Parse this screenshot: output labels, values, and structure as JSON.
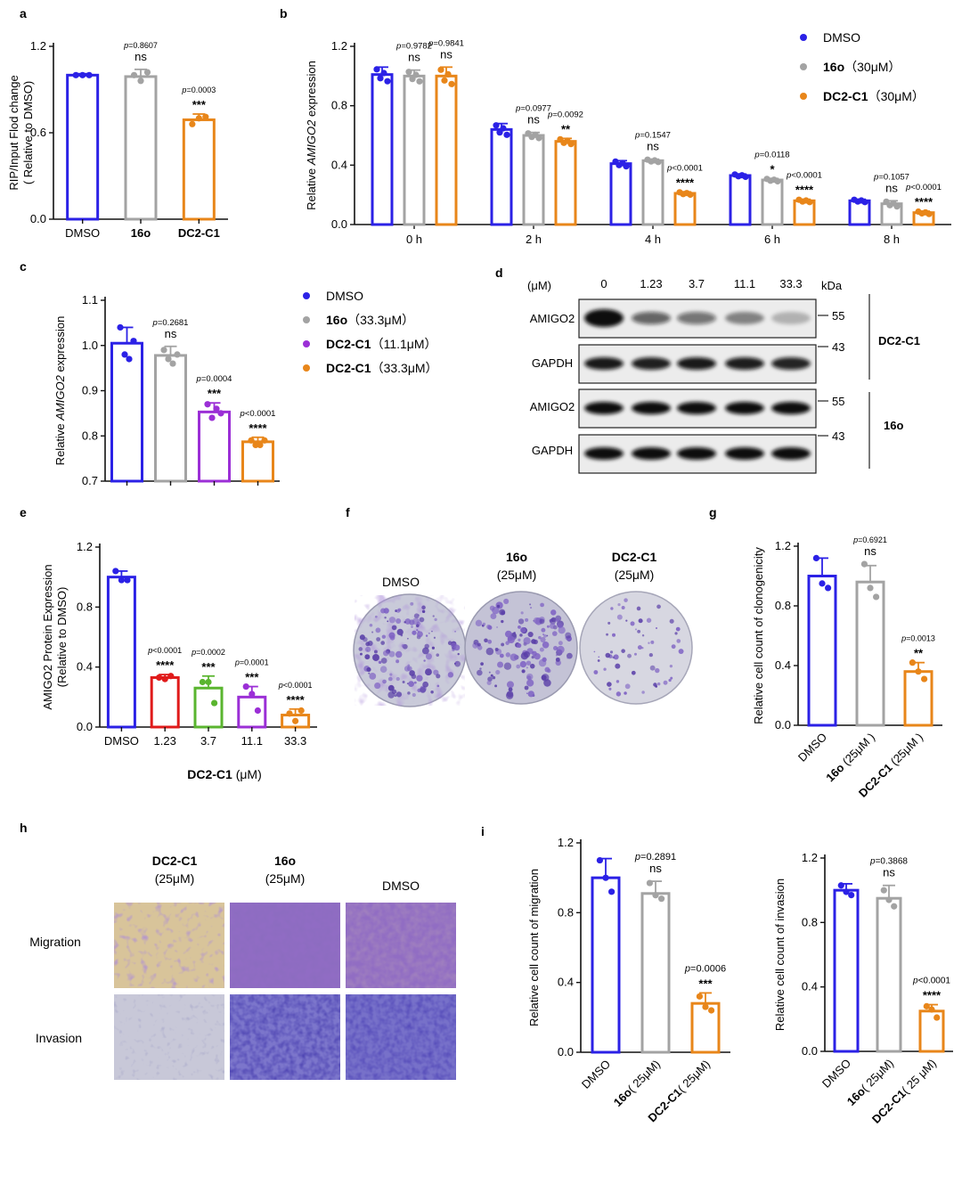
{
  "colors": {
    "DMSO": "#2b21e6",
    "16o": "#a3a3a3",
    "DC2-C1": "#e8861a",
    "DC2-C1-11": "#9b2fd6",
    "red": "#e01b1b",
    "green": "#5ab52f",
    "purple": "#9b2fd6"
  },
  "chart_data": [
    {
      "panel": "a",
      "type": "bar",
      "ylabel_lines": [
        "RIP/Input Flod change",
        "( Relative to DMSO)"
      ],
      "ylim": [
        0,
        1.2
      ],
      "yticks": [
        "0.0",
        "0.6",
        "1.2"
      ],
      "categories": [
        "DMSO",
        "16o",
        "DC2-C1"
      ],
      "bold_categories": [
        false,
        true,
        true
      ],
      "series_colors": [
        "DMSO",
        "16o",
        "DC2-C1"
      ],
      "values": [
        1.0,
        0.99,
        0.69
      ],
      "errors": [
        0.01,
        0.05,
        0.04
      ],
      "points": [
        [
          1.0,
          1.0,
          1.0
        ],
        [
          1.0,
          0.96,
          1.02
        ],
        [
          0.66,
          0.7,
          0.71
        ]
      ],
      "annotations": [
        null,
        {
          "p": "p=0.8607",
          "sig": "ns"
        },
        {
          "p": "p=0.0003",
          "sig": "***"
        }
      ]
    },
    {
      "panel": "b",
      "type": "grouped-bar",
      "ylabel_pre": "Relative ",
      "ylabel_italic": "AMIGO2",
      "ylabel_post": " expression",
      "ylim": [
        0,
        1.2
      ],
      "yticks": [
        "0.0",
        "0.4",
        "0.8",
        "1.2"
      ],
      "categories": [
        "0 h",
        "2 h",
        "4 h",
        "6 h",
        "8 h"
      ],
      "series": [
        {
          "name": "DMSO",
          "color": "DMSO",
          "values": [
            1.01,
            0.64,
            0.41,
            0.33,
            0.16
          ],
          "errors": [
            0.05,
            0.04,
            0.02,
            0.01,
            0.01
          ]
        },
        {
          "name": "16o",
          "color": "16o",
          "values": [
            1.0,
            0.6,
            0.43,
            0.3,
            0.14
          ],
          "errors": [
            0.04,
            0.02,
            0.01,
            0.01,
            0.02
          ]
        },
        {
          "name": "DC2-C1",
          "color": "DC2-C1",
          "values": [
            1.0,
            0.56,
            0.21,
            0.16,
            0.08
          ],
          "errors": [
            0.06,
            0.02,
            0.01,
            0.01,
            0.01
          ]
        }
      ],
      "annotations": [
        [
          null,
          {
            "p": "p=0.9782",
            "sig": "ns"
          },
          {
            "p": "p=0.9841",
            "sig": "ns"
          }
        ],
        [
          null,
          {
            "p": "p=0.0977",
            "sig": "ns"
          },
          {
            "p": "p=0.0092",
            "sig": "**"
          }
        ],
        [
          null,
          {
            "p": "p=0.1547",
            "sig": "ns"
          },
          {
            "p": "p<0.0001",
            "sig": "****"
          }
        ],
        [
          null,
          {
            "p": "p=0.0118",
            "sig": "*"
          },
          {
            "p": "p<0.0001",
            "sig": "****"
          }
        ],
        [
          null,
          {
            "p": "p=0.1057",
            "sig": "ns"
          },
          {
            "p": "p<0.0001",
            "sig": "****"
          }
        ]
      ],
      "legend": [
        {
          "prefix": "DMSO",
          "suffix": "",
          "color": "DMSO",
          "bold": false
        },
        {
          "prefix": "16o",
          "suffix": "（30μM）",
          "color": "16o",
          "bold": true
        },
        {
          "prefix": "DC2-C1",
          "suffix": "（30μM）",
          "color": "DC2-C1",
          "bold": true
        }
      ]
    },
    {
      "panel": "c",
      "type": "bar",
      "ylabel_pre": "Relative ",
      "ylabel_italic": "AMIGO2",
      "ylabel_post": " expression",
      "ylim": [
        0.7,
        1.1
      ],
      "yticks": [
        "0.7",
        "0.8",
        "0.9",
        "1.0",
        "1.1"
      ],
      "categories": [
        "",
        "",
        "",
        ""
      ],
      "series_colors": [
        "DMSO",
        "16o",
        "purple",
        "DC2-C1"
      ],
      "values": [
        1.005,
        0.978,
        0.853,
        0.787
      ],
      "errors": [
        0.035,
        0.02,
        0.02,
        0.01
      ],
      "points": [
        [
          1.04,
          0.98,
          0.97,
          1.01
        ],
        [
          0.99,
          0.97,
          0.96,
          0.98
        ],
        [
          0.87,
          0.84,
          0.86,
          0.85
        ],
        [
          0.79,
          0.78,
          0.78,
          0.79
        ]
      ],
      "annotations": [
        null,
        {
          "p": "p=0.2681",
          "sig": "ns"
        },
        {
          "p": "p=0.0004",
          "sig": "***"
        },
        {
          "p": "p<0.0001",
          "sig": "****"
        }
      ],
      "legend": [
        {
          "prefix": "DMSO",
          "suffix": "",
          "color": "DMSO",
          "bold": false
        },
        {
          "prefix": "16o",
          "suffix": "（33.3μM）",
          "color": "16o",
          "bold": true
        },
        {
          "prefix": "DC2-C1",
          "suffix": "（11.1μM）",
          "color": "purple",
          "bold": true
        },
        {
          "prefix": "DC2-C1",
          "suffix": "（33.3μM）",
          "color": "DC2-C1",
          "bold": true
        }
      ]
    },
    {
      "panel": "e",
      "type": "bar",
      "ylabel_lines": [
        "AMIGO2 Protein Expression",
        "(Relative to DMSO)"
      ],
      "ylim": [
        0,
        1.2
      ],
      "yticks": [
        "0.0",
        "0.4",
        "0.8",
        "1.2"
      ],
      "categories": [
        "DMSO",
        "1.23",
        "3.7",
        "11.1",
        "33.3"
      ],
      "bold_categories": [
        false,
        false,
        false,
        false,
        false
      ],
      "series_colors": [
        "DMSO",
        "red",
        "green",
        "purple",
        "DC2-C1"
      ],
      "values": [
        1.0,
        0.33,
        0.26,
        0.2,
        0.08
      ],
      "errors": [
        0.04,
        0.02,
        0.08,
        0.07,
        0.04
      ],
      "points": [
        [
          1.04,
          0.98,
          0.98
        ],
        [
          0.33,
          0.32,
          0.34
        ],
        [
          0.3,
          0.3,
          0.16
        ],
        [
          0.27,
          0.22,
          0.11
        ],
        [
          0.09,
          0.04,
          0.11
        ]
      ],
      "annotations": [
        null,
        {
          "p": "p<0.0001",
          "sig": "****"
        },
        {
          "p": "p=0.0002",
          "sig": "***"
        },
        {
          "p": "p=0.0001",
          "sig": "***"
        },
        {
          "p": "p<0.0001",
          "sig": "****"
        }
      ],
      "xlabel_bold": "DC2-C1",
      "xlabel_rest": " (μM)"
    },
    {
      "panel": "g",
      "type": "bar",
      "ylabel_lines": [
        "Relative cell count of clonogenicity"
      ],
      "ylim": [
        0,
        1.2
      ],
      "yticks": [
        "0.0",
        "0.4",
        "0.8",
        "1.2"
      ],
      "categories": [
        "DMSO",
        "16o",
        "DC2-C1"
      ],
      "category_suffix": [
        "",
        " (25μM )",
        " (25μM )"
      ],
      "bold_categories": [
        false,
        true,
        true
      ],
      "series_colors": [
        "DMSO",
        "16o",
        "DC2-C1"
      ],
      "values": [
        1.0,
        0.96,
        0.36
      ],
      "errors": [
        0.12,
        0.11,
        0.06
      ],
      "points": [
        [
          1.12,
          0.95,
          0.92
        ],
        [
          1.08,
          0.92,
          0.86
        ],
        [
          0.42,
          0.36,
          0.31
        ]
      ],
      "annotations": [
        null,
        {
          "p": "p=0.6921",
          "sig": "ns"
        },
        {
          "p": "p=0.0013",
          "sig": "**"
        }
      ]
    },
    {
      "panel": "i1",
      "type": "bar",
      "ylabel_lines": [
        "Relative cell count of migration"
      ],
      "ylim": [
        0,
        1.2
      ],
      "yticks": [
        "0.0",
        "0.4",
        "0.8",
        "1.2"
      ],
      "categories": [
        "DMSO",
        "16o",
        "DC2-C1"
      ],
      "category_suffix": [
        "",
        "( 25μM)",
        "( 25μM)"
      ],
      "bold_categories": [
        false,
        true,
        true
      ],
      "series_colors": [
        "DMSO",
        "16o",
        "DC2-C1"
      ],
      "values": [
        1.0,
        0.91,
        0.28
      ],
      "errors": [
        0.11,
        0.07,
        0.06
      ],
      "points": [
        [
          1.1,
          1.0,
          0.92
        ],
        [
          0.97,
          0.9,
          0.88
        ],
        [
          0.32,
          0.26,
          0.24
        ]
      ],
      "annotations": [
        null,
        {
          "p": "p=0.2891",
          "sig": "ns"
        },
        {
          "p": "p=0.0006",
          "sig": "***"
        }
      ]
    },
    {
      "panel": "i2",
      "type": "bar",
      "ylabel_lines": [
        "Relative cell count of invasion"
      ],
      "ylim": [
        0,
        1.2
      ],
      "yticks": [
        "0.0",
        "0.4",
        "0.8",
        "1.2"
      ],
      "categories": [
        "DMSO",
        "16o",
        "DC2-C1"
      ],
      "category_suffix": [
        "",
        "( 25μM)",
        "( 25 μM)"
      ],
      "bold_categories": [
        false,
        true,
        true
      ],
      "series_colors": [
        "DMSO",
        "16o",
        "DC2-C1"
      ],
      "values": [
        1.0,
        0.95,
        0.25
      ],
      "errors": [
        0.04,
        0.08,
        0.04
      ],
      "points": [
        [
          1.03,
          0.99,
          0.97
        ],
        [
          1.0,
          0.94,
          0.9
        ],
        [
          0.28,
          0.26,
          0.21
        ]
      ],
      "annotations": [
        null,
        {
          "p": "p=0.3868",
          "sig": "ns"
        },
        {
          "p": "p<0.0001",
          "sig": "****"
        }
      ]
    }
  ],
  "panel_labels": [
    "a",
    "b",
    "c",
    "d",
    "e",
    "f",
    "g",
    "h",
    "i"
  ],
  "western": {
    "unit": "(μM)",
    "concentrations": [
      "0",
      "1.23",
      "3.7",
      "11.1",
      "33.3"
    ],
    "kda_label": "kDa",
    "rows": [
      "AMIGO2",
      "GAPDH",
      "AMIGO2",
      "GAPDH"
    ],
    "markers": [
      "55",
      "43",
      "55",
      "43"
    ],
    "group_labels": [
      "DC2-C1",
      "16o"
    ]
  },
  "colony": {
    "labels": [
      {
        "name": "DMSO",
        "dose": ""
      },
      {
        "name": "16o",
        "dose": "(25μM)"
      },
      {
        "name": "DC2-C1",
        "dose": "(25μM)"
      }
    ]
  },
  "transwell": {
    "columns": [
      {
        "name": "DC2-C1",
        "dose": "(25μM)"
      },
      {
        "name": "16o",
        "dose": "(25μM)"
      },
      {
        "name": "DMSO",
        "dose": ""
      }
    ],
    "rows": [
      "Migration",
      "Invasion"
    ]
  }
}
